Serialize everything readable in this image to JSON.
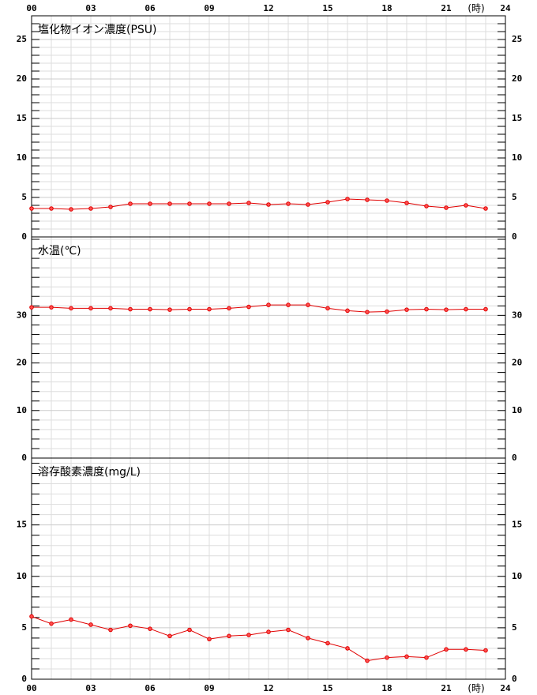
{
  "chart_data": [
    {
      "type": "line",
      "title": "塩化物イオン濃度(PSU)",
      "xlabel": "(時)",
      "color": "#e00000",
      "x": [
        0,
        1,
        2,
        3,
        4,
        5,
        6,
        7,
        8,
        9,
        10,
        11,
        12,
        13,
        14,
        15,
        16,
        17,
        18,
        19,
        20,
        21,
        22,
        23
      ],
      "values": [
        3.6,
        3.6,
        3.5,
        3.6,
        3.8,
        4.2,
        4.2,
        4.2,
        4.2,
        4.2,
        4.2,
        4.3,
        4.1,
        4.2,
        4.1,
        4.4,
        4.8,
        4.7,
        4.6,
        4.3,
        3.9,
        3.7,
        4.0,
        3.6
      ],
      "xlim": [
        0,
        24
      ],
      "xticks": [
        {
          "value": 0,
          "label": "00"
        },
        {
          "value": 3,
          "label": "03"
        },
        {
          "value": 6,
          "label": "06"
        },
        {
          "value": 9,
          "label": "09"
        },
        12,
        15,
        18,
        21,
        24
      ],
      "minor_xticks": [
        1,
        2,
        4,
        5,
        7,
        8,
        10,
        11,
        13,
        14,
        16,
        17,
        19,
        20,
        22,
        23
      ],
      "ylim": [
        0,
        28
      ],
      "yticks": [
        0,
        5,
        10,
        15,
        20,
        25
      ],
      "minor_yticks": [
        1,
        2,
        3,
        4,
        6,
        7,
        8,
        9,
        11,
        12,
        13,
        14,
        16,
        17,
        18,
        19,
        21,
        22,
        23,
        24,
        26,
        27
      ],
      "grid": true
    },
    {
      "type": "line",
      "title": "水温(℃)",
      "color": "#e00000",
      "x": [
        0,
        1,
        2,
        3,
        4,
        5,
        6,
        7,
        8,
        9,
        10,
        11,
        12,
        13,
        14,
        15,
        16,
        17,
        18,
        19,
        20,
        21,
        22,
        23
      ],
      "values": [
        31.7,
        31.7,
        31.5,
        31.5,
        31.5,
        31.3,
        31.3,
        31.2,
        31.3,
        31.3,
        31.5,
        31.8,
        32.2,
        32.2,
        32.2,
        31.5,
        31.0,
        30.7,
        30.8,
        31.2,
        31.3,
        31.2,
        31.3,
        31.3
      ],
      "xlim": [
        0,
        24
      ],
      "minor_xticks": [
        1,
        2,
        3,
        4,
        5,
        6,
        7,
        8,
        9,
        10,
        11,
        12,
        13,
        14,
        15,
        16,
        17,
        18,
        19,
        20,
        21,
        22,
        23
      ],
      "ylim": [
        0,
        46.5
      ],
      "yticks": [
        0,
        10,
        20,
        30
      ],
      "minor_yticks": [
        2,
        4,
        6,
        8,
        12,
        14,
        16,
        18,
        22,
        24,
        26,
        28,
        32,
        34,
        36,
        38,
        40,
        42,
        44,
        46
      ],
      "grid": true
    },
    {
      "type": "line",
      "title": "溶存酸素濃度(mg/L)",
      "xlabel": "(時)",
      "color": "#e00000",
      "x": [
        0,
        1,
        2,
        3,
        4,
        5,
        6,
        7,
        8,
        9,
        10,
        11,
        12,
        13,
        14,
        15,
        16,
        17,
        18,
        19,
        20,
        21,
        22,
        23
      ],
      "values": [
        6.1,
        5.4,
        5.8,
        5.3,
        4.8,
        5.2,
        4.9,
        4.2,
        4.8,
        3.9,
        4.2,
        4.3,
        4.6,
        4.8,
        4.0,
        3.5,
        3.0,
        1.8,
        2.1,
        2.2,
        2.1,
        2.9,
        2.9,
        2.8
      ],
      "xlim": [
        0,
        24
      ],
      "xticks": [
        {
          "value": 0,
          "label": "00"
        },
        {
          "value": 3,
          "label": "03"
        },
        {
          "value": 6,
          "label": "06"
        },
        {
          "value": 9,
          "label": "09"
        },
        12,
        15,
        18,
        21,
        24
      ],
      "minor_xticks": [
        1,
        2,
        4,
        5,
        7,
        8,
        10,
        11,
        13,
        14,
        16,
        17,
        19,
        20,
        22,
        23
      ],
      "ylim": [
        0,
        21.5
      ],
      "yticks": [
        0,
        5,
        10,
        15
      ],
      "minor_yticks": [
        1,
        2,
        3,
        4,
        6,
        7,
        8,
        9,
        11,
        12,
        13,
        14,
        16,
        17,
        18,
        19,
        20,
        21
      ],
      "grid": true
    }
  ]
}
